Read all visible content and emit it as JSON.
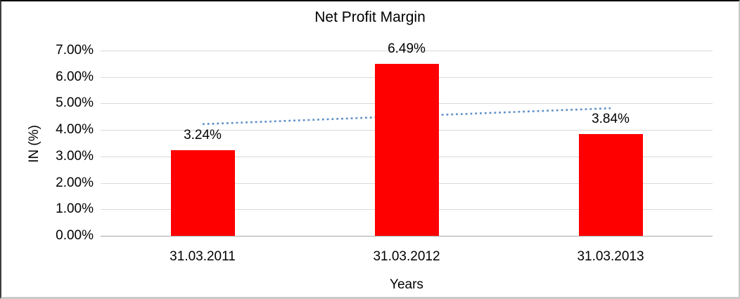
{
  "chart_data": {
    "type": "bar",
    "title": "Net Profit Margin",
    "xlabel": "Years",
    "ylabel": "IN (%)",
    "categories": [
      "31.03.2011",
      "31.03.2012",
      "31.03.2013"
    ],
    "series": [
      {
        "name": "Net Profit Margin",
        "values": [
          3.24,
          6.49,
          3.84
        ],
        "data_labels": [
          "3.24%",
          "6.49%",
          "3.84%"
        ],
        "color": "#ff0000"
      }
    ],
    "ylim": [
      0,
      7
    ],
    "yticks": [
      0,
      1,
      2,
      3,
      4,
      5,
      6,
      7
    ],
    "ytick_labels": [
      "0.00%",
      "1.00%",
      "2.00%",
      "3.00%",
      "4.00%",
      "5.00%",
      "6.00%",
      "7.00%"
    ],
    "grid": true,
    "legend": "none",
    "trendline": {
      "type": "linear",
      "style": "dotted",
      "color": "#5e8fc9",
      "start_value": 4.22,
      "end_value": 4.82
    }
  },
  "colors": {
    "bar": "#ff0000",
    "gridline": "#d9d9d9",
    "axis_line": "#a6a6a6",
    "trendline": "#5e8fc9",
    "text": "#000000",
    "background": "#ffffff"
  }
}
